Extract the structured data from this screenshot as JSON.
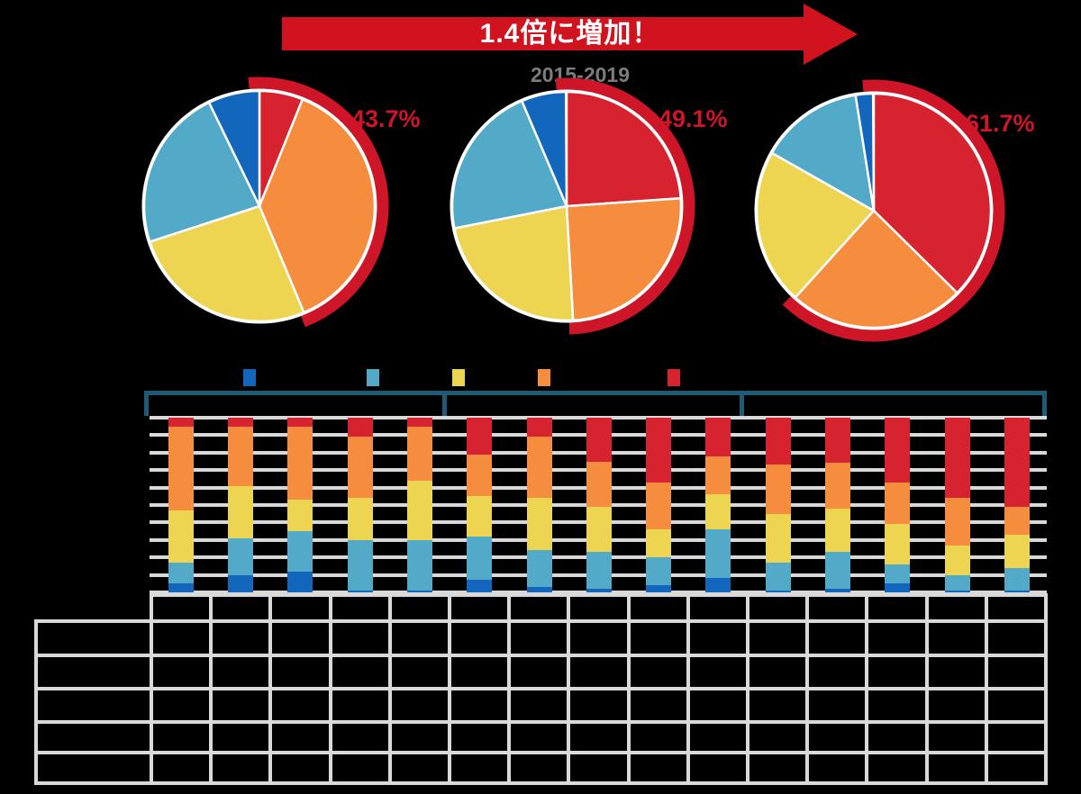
{
  "colors": {
    "series": {
      "darkblue": "#1267BD",
      "lightblue": "#52AAC8",
      "yellow": "#EDD551",
      "orange": "#F68C3D",
      "red": "#D7232F"
    },
    "arc_red": "#CE1628",
    "callout_red": "#CE1628",
    "banner_red": "#D1121F",
    "bracket_teal": "#1F5B75",
    "gridline_gray": "#D9D9D9",
    "period_gray": "#7C7C7C",
    "pie_label_white": "#FFFFFF"
  },
  "banner": {
    "text": "1.4倍に増加！"
  },
  "period_label": "2015-2019",
  "chart_data": [
    {
      "type": "pie",
      "name": "pie-period-1",
      "callout": "43.7%",
      "highlight_series": [
        "red",
        "orange"
      ],
      "slices": [
        {
          "series": "red",
          "value": 6.1,
          "label": "6.1%"
        },
        {
          "series": "orange",
          "value": 37.6,
          "label": "37.6%"
        },
        {
          "series": "yellow",
          "value": 26.3,
          "label": "26.3%"
        },
        {
          "series": "lightblue",
          "value": 22.8,
          "label": "22.8%"
        },
        {
          "series": "darkblue",
          "value": 7.2,
          "label": "7.2%"
        }
      ]
    },
    {
      "type": "pie",
      "name": "pie-period-2",
      "callout": "49.1%",
      "highlight_series": [
        "red",
        "orange"
      ],
      "slices": [
        {
          "series": "red",
          "value": 23.9,
          "label": "23.9%"
        },
        {
          "series": "orange",
          "value": 25.2,
          "label": "25.2%"
        },
        {
          "series": "yellow",
          "value": 22.8,
          "label": "22.8%"
        },
        {
          "series": "lightblue",
          "value": 21.7,
          "label": "21.7%"
        },
        {
          "series": "darkblue",
          "value": 6.3,
          "label": "6.3%"
        }
      ]
    },
    {
      "type": "pie",
      "name": "pie-period-3",
      "callout": "61.7%",
      "highlight_series": [
        "red",
        "orange"
      ],
      "slices": [
        {
          "series": "red",
          "value": 37.4,
          "label": "37.4%"
        },
        {
          "series": "orange",
          "value": 24.3,
          "label": "24.3%"
        },
        {
          "series": "yellow",
          "value": 21.5,
          "label": "21.5%"
        },
        {
          "series": "lightblue",
          "value": 14.3,
          "label": "14.3%"
        },
        {
          "series": "darkblue",
          "value": 2.4,
          "label": "2.4%"
        }
      ]
    },
    {
      "type": "bar",
      "name": "yearly-100pct-stacked-bars",
      "stacked_pct": true,
      "bars": 15,
      "bar_groups": 3,
      "bars_per_group": 5,
      "categories": [
        "",
        "",
        "",
        "",
        "",
        "",
        "",
        "",
        "",
        "",
        "",
        "",
        "",
        "",
        ""
      ],
      "series_bottom_to_top": [
        {
          "key": "darkblue",
          "values": [
            5,
            10,
            12,
            1,
            1,
            7,
            3,
            2,
            4,
            8,
            1,
            2,
            5,
            1,
            1
          ]
        },
        {
          "key": "lightblue",
          "values": [
            12,
            21,
            23,
            29,
            29,
            25,
            21,
            21,
            16,
            28,
            16,
            21,
            11,
            9,
            13
          ]
        },
        {
          "key": "yellow",
          "values": [
            30,
            30,
            18,
            24,
            34,
            23,
            30,
            26,
            16,
            20,
            28,
            25,
            23,
            17,
            19
          ]
        },
        {
          "key": "orange",
          "values": [
            48,
            34,
            42,
            35,
            31,
            24,
            35,
            26,
            27,
            22,
            28,
            26,
            24,
            27,
            16
          ]
        },
        {
          "key": "red",
          "values": [
            5,
            5,
            5,
            11,
            5,
            21,
            11,
            25,
            37,
            22,
            27,
            26,
            37,
            46,
            51
          ]
        }
      ],
      "ylim": [
        0,
        100
      ],
      "gridline_interval_pct": 10,
      "axis_tick_labels_visible": false
    }
  ],
  "legend": {
    "swatch_keys": [
      "darkblue",
      "lightblue",
      "yellow",
      "orange",
      "red"
    ],
    "labels_visible": false
  },
  "bottom_table": {
    "header_row_columns": 15,
    "label_column": true,
    "data_rows": 5,
    "all_cells_empty": true
  }
}
